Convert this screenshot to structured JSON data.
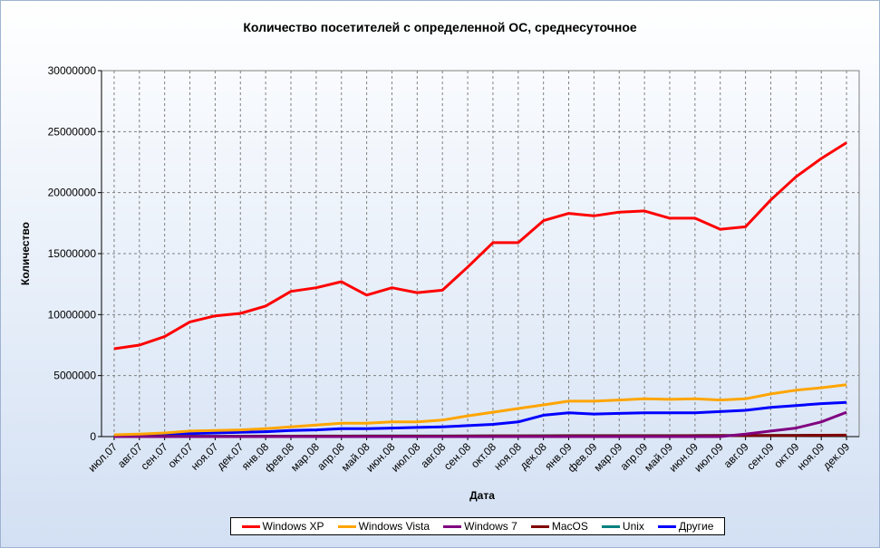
{
  "chart_data": {
    "type": "line",
    "title": "Количество посетителей с определенной ОС, среднесуточное",
    "xlabel": "Дата",
    "ylabel": "Количество",
    "ylim": [
      0,
      30000000
    ],
    "yticks": [
      "0",
      "5000000",
      "10000000",
      "15000000",
      "20000000",
      "25000000",
      "30000000"
    ],
    "grid": true,
    "legend_position": "bottom",
    "categories": [
      "июл.07",
      "авг.07",
      "сен.07",
      "окт.07",
      "ноя.07",
      "дек.07",
      "янв.08",
      "фев.08",
      "мар.08",
      "апр.08",
      "май.08",
      "июн.08",
      "июл.08",
      "авг.08",
      "сен.08",
      "окт.08",
      "ноя.08",
      "дек.08",
      "янв.09",
      "фев.09",
      "мар.09",
      "апр.09",
      "май.09",
      "июн.09",
      "июл.09",
      "авг.09",
      "сен.09",
      "окт.09",
      "ноя.09",
      "дек.09"
    ],
    "series": [
      {
        "name": "Windows XP",
        "color": "#ff0000",
        "values": [
          7200000,
          7500000,
          8200000,
          9400000,
          9900000,
          10100000,
          10700000,
          11900000,
          12200000,
          12700000,
          11600000,
          12200000,
          11800000,
          12000000,
          13900000,
          15900000,
          15900000,
          17700000,
          18300000,
          18100000,
          18400000,
          18500000,
          17900000,
          17900000,
          17000000,
          17200000,
          19400000,
          21300000,
          22800000,
          24100000
        ]
      },
      {
        "name": "Windows Vista",
        "color": "#ffa500",
        "values": [
          150000,
          200000,
          300000,
          450000,
          500000,
          550000,
          650000,
          800000,
          950000,
          1100000,
          1100000,
          1200000,
          1200000,
          1350000,
          1700000,
          2000000,
          2300000,
          2600000,
          2900000,
          2900000,
          3000000,
          3100000,
          3050000,
          3100000,
          3000000,
          3100000,
          3500000,
          3800000,
          4000000,
          4250000
        ]
      },
      {
        "name": "Windows 7",
        "color": "#800080",
        "values": [
          0,
          0,
          0,
          0,
          0,
          0,
          0,
          0,
          0,
          0,
          0,
          0,
          0,
          0,
          0,
          0,
          0,
          0,
          0,
          0,
          0,
          0,
          0,
          0,
          0,
          200000,
          450000,
          700000,
          1200000,
          2000000
        ]
      },
      {
        "name": "MacOS",
        "color": "#800000",
        "values": [
          20000,
          20000,
          20000,
          25000,
          25000,
          25000,
          30000,
          30000,
          35000,
          35000,
          35000,
          40000,
          40000,
          40000,
          45000,
          50000,
          55000,
          60000,
          65000,
          65000,
          70000,
          70000,
          70000,
          75000,
          80000,
          85000,
          90000,
          100000,
          110000,
          120000
        ]
      },
      {
        "name": "Unix",
        "color": "#008080",
        "values": [
          20000,
          20000,
          25000,
          30000,
          30000,
          35000,
          35000,
          40000,
          45000,
          45000,
          50000,
          50000,
          55000,
          55000,
          60000,
          65000,
          70000,
          75000,
          80000,
          80000,
          85000,
          85000,
          85000,
          90000,
          90000,
          95000,
          100000,
          105000,
          110000,
          115000
        ]
      },
      {
        "name": "Другие",
        "color": "#0000ff",
        "values": [
          100000,
          150000,
          200000,
          250000,
          300000,
          350000,
          400000,
          500000,
          550000,
          650000,
          650000,
          700000,
          750000,
          800000,
          900000,
          1000000,
          1200000,
          1750000,
          1950000,
          1850000,
          1900000,
          1950000,
          1950000,
          1950000,
          2050000,
          2150000,
          2400000,
          2550000,
          2700000,
          2800000
        ]
      }
    ]
  }
}
